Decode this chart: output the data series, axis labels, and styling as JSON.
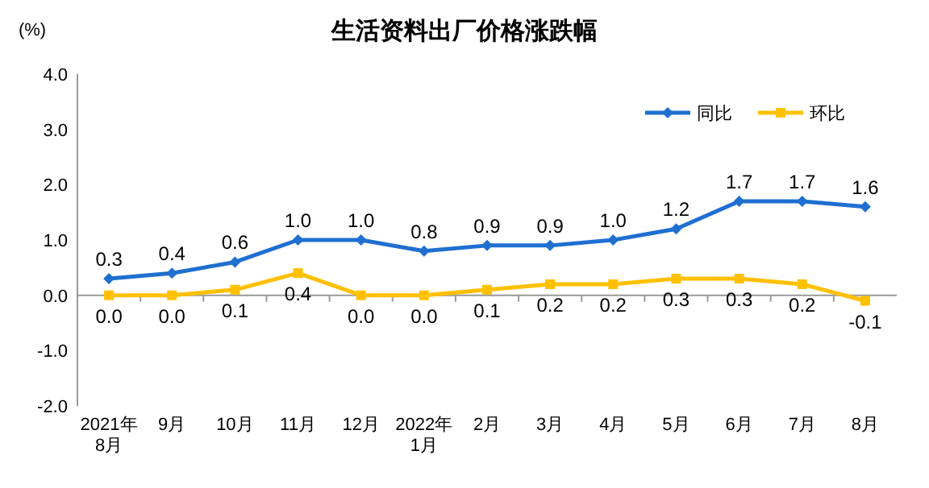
{
  "chart_data": {
    "type": "line",
    "title": "生活资料出厂价格涨跌幅",
    "ylabel": "(%)",
    "categories": [
      "2021年\n8月",
      "9月",
      "10月",
      "11月",
      "12月",
      "2022年\n1月",
      "2月",
      "3月",
      "4月",
      "5月",
      "6月",
      "7月",
      "8月"
    ],
    "series": [
      {
        "name": "同比",
        "color": "#1f6fd1",
        "marker": "diamond",
        "values": [
          0.3,
          0.4,
          0.6,
          1.0,
          1.0,
          0.8,
          0.9,
          0.9,
          1.0,
          1.2,
          1.7,
          1.7,
          1.6
        ],
        "value_labels": [
          "0.3",
          "0.4",
          "0.6",
          "1.0",
          "1.0",
          "0.8",
          "0.9",
          "0.9",
          "1.0",
          "1.2",
          "1.7",
          "1.7",
          "1.6"
        ]
      },
      {
        "name": "环比",
        "color": "#ffc000",
        "marker": "square",
        "values": [
          0.0,
          0.0,
          0.1,
          0.4,
          0.0,
          0.0,
          0.1,
          0.2,
          0.2,
          0.3,
          0.3,
          0.2,
          -0.1
        ],
        "value_labels": [
          "0.0",
          "0.0",
          "0.1",
          "0.4",
          "0.0",
          "0.0",
          "0.1",
          "0.2",
          "0.2",
          "0.3",
          "0.3",
          "0.2",
          "-0.1"
        ]
      }
    ],
    "ylim": [
      -2,
      4
    ],
    "yticks": [
      {
        "value": -2,
        "label": "-2.0"
      },
      {
        "value": -1,
        "label": "-1.0"
      },
      {
        "value": 0,
        "label": "0.0"
      },
      {
        "value": 1,
        "label": "1.0"
      },
      {
        "value": 2,
        "label": "2.0"
      },
      {
        "value": 3,
        "label": "3.0"
      },
      {
        "value": 4,
        "label": "4.0"
      }
    ],
    "legend": "top right",
    "line_style": "solid"
  }
}
